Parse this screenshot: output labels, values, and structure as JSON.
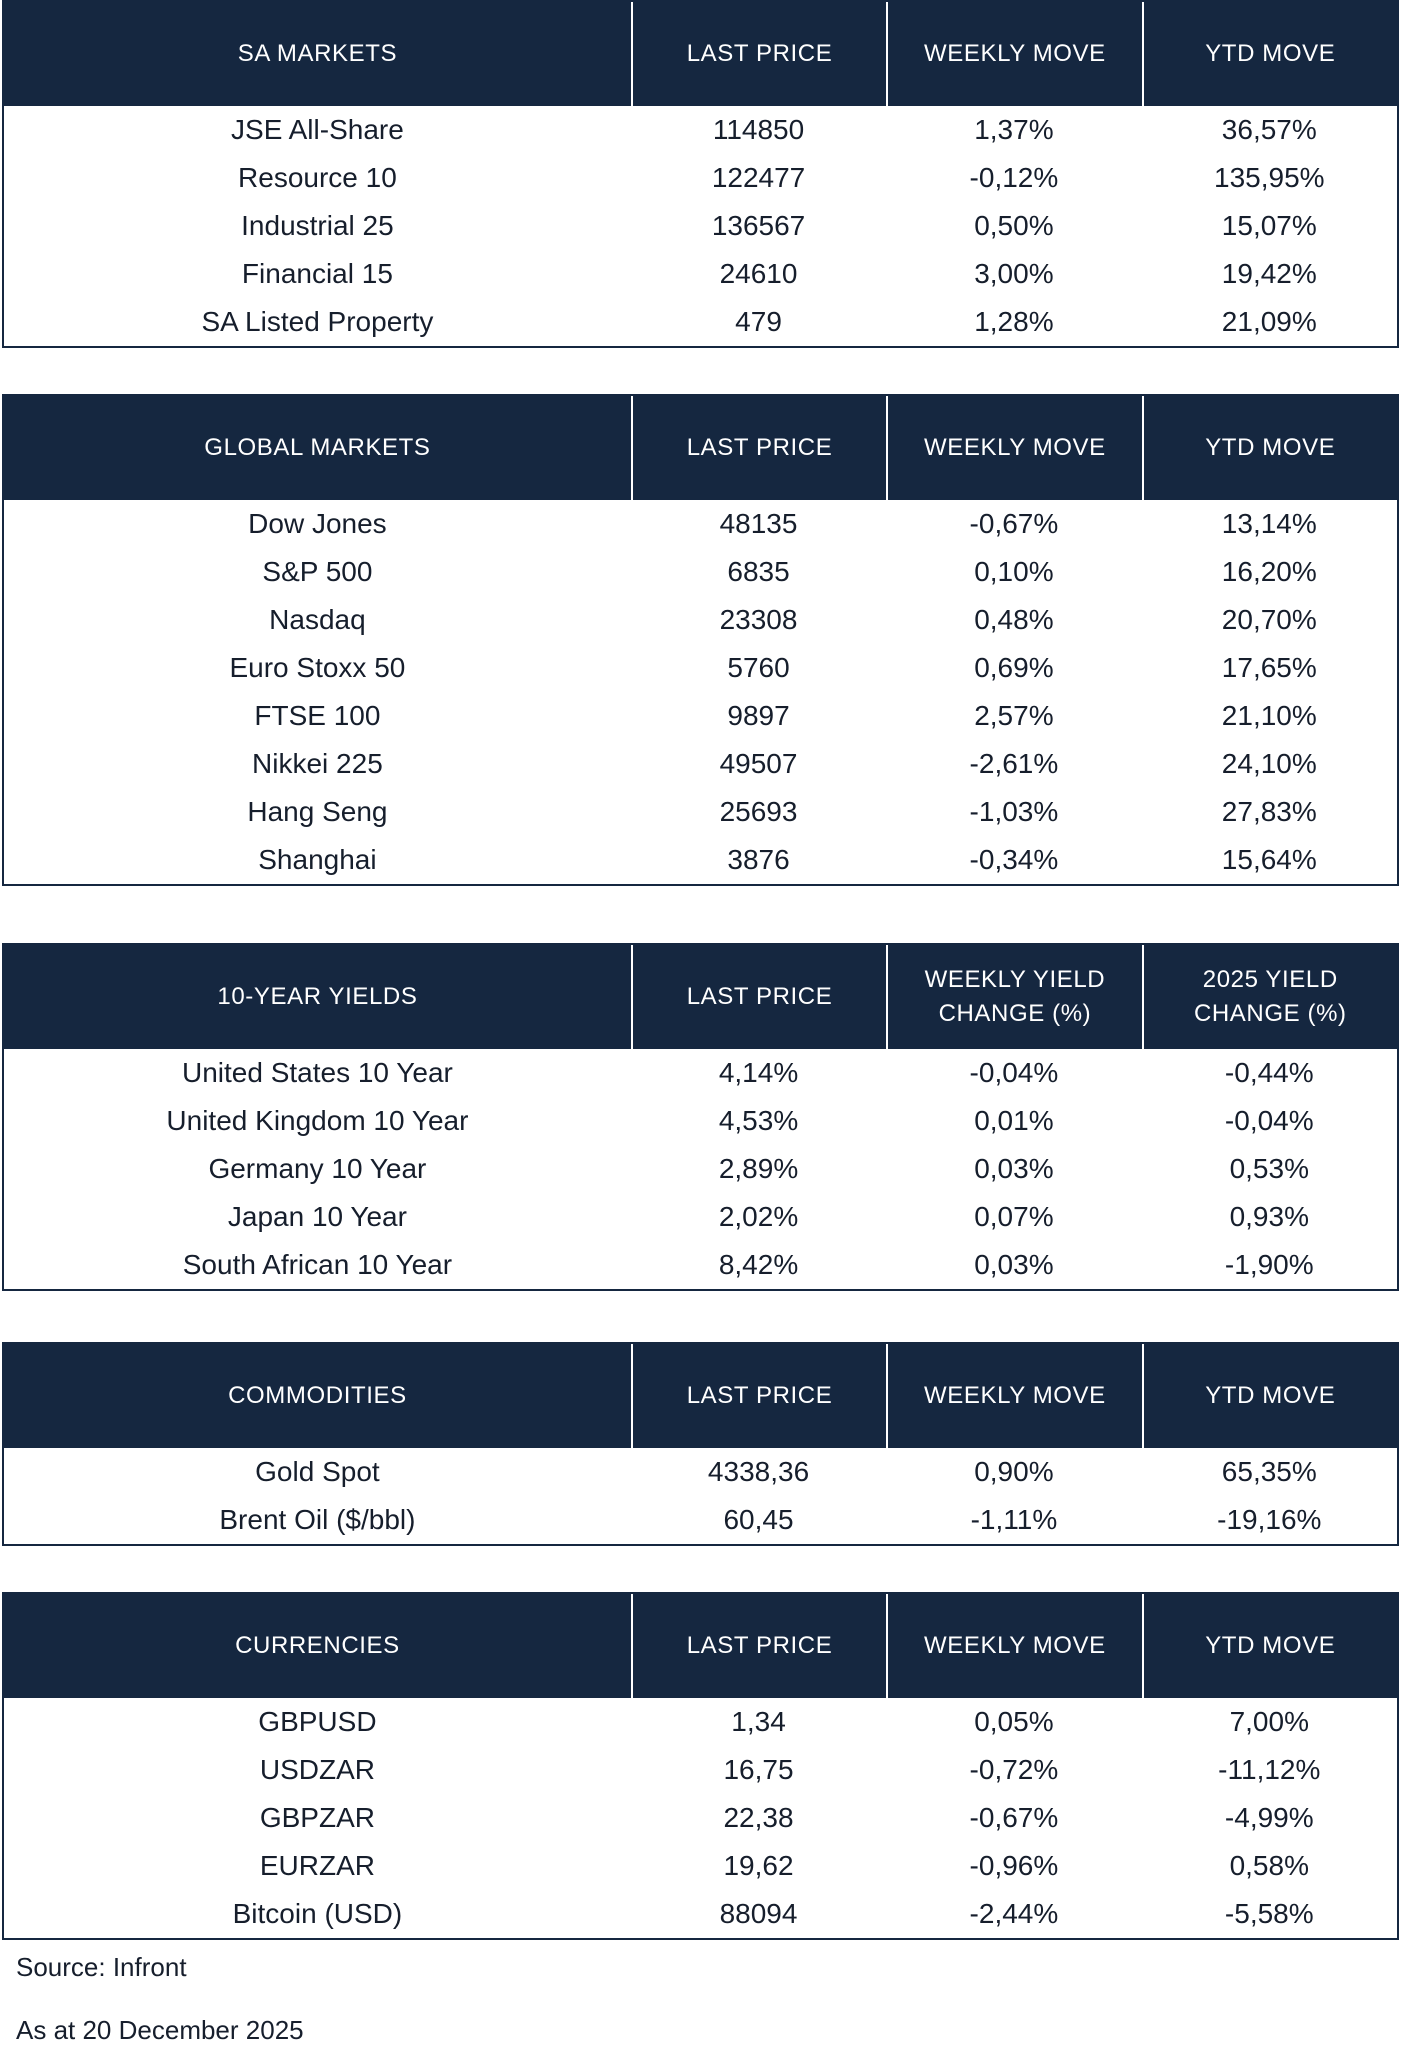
{
  "sections": [
    {
      "title": "SA MARKETS",
      "columns": [
        "LAST PRICE",
        "WEEKLY MOVE",
        "YTD MOVE"
      ],
      "rows": [
        [
          "JSE All-Share",
          "114850",
          "1,37%",
          "36,57%"
        ],
        [
          "Resource 10",
          "122477",
          "-0,12%",
          "135,95%"
        ],
        [
          "Industrial 25",
          "136567",
          "0,50%",
          "15,07%"
        ],
        [
          "Financial 15",
          "24610",
          "3,00%",
          "19,42%"
        ],
        [
          "SA Listed Property",
          "479",
          "1,28%",
          "21,09%"
        ]
      ]
    },
    {
      "title": "GLOBAL MARKETS",
      "columns": [
        "LAST PRICE",
        "WEEKLY MOVE",
        "YTD MOVE"
      ],
      "rows": [
        [
          "Dow Jones",
          "48135",
          "-0,67%",
          "13,14%"
        ],
        [
          "S&P 500",
          "6835",
          "0,10%",
          "16,20%"
        ],
        [
          "Nasdaq",
          "23308",
          "0,48%",
          "20,70%"
        ],
        [
          "Euro Stoxx 50",
          "5760",
          "0,69%",
          "17,65%"
        ],
        [
          "FTSE 100",
          "9897",
          "2,57%",
          "21,10%"
        ],
        [
          "Nikkei 225",
          "49507",
          "-2,61%",
          "24,10%"
        ],
        [
          "Hang Seng",
          "25693",
          "-1,03%",
          "27,83%"
        ],
        [
          "Shanghai",
          "3876",
          "-0,34%",
          "15,64%"
        ]
      ]
    },
    {
      "title": "10-YEAR YIELDS",
      "columns": [
        "LAST PRICE",
        "WEEKLY YIELD CHANGE (%)",
        "2025 YIELD CHANGE (%)"
      ],
      "rows": [
        [
          "United States 10 Year",
          "4,14%",
          "-0,04%",
          "-0,44%"
        ],
        [
          "United Kingdom 10 Year",
          "4,53%",
          "0,01%",
          "-0,04%"
        ],
        [
          "Germany 10 Year",
          "2,89%",
          "0,03%",
          "0,53%"
        ],
        [
          "Japan 10 Year",
          "2,02%",
          "0,07%",
          "0,93%"
        ],
        [
          "South African 10 Year",
          "8,42%",
          "0,03%",
          "-1,90%"
        ]
      ]
    },
    {
      "title": "COMMODITIES",
      "columns": [
        "LAST PRICE",
        "WEEKLY MOVE",
        "YTD MOVE"
      ],
      "rows": [
        [
          "Gold Spot",
          "4338,36",
          "0,90%",
          "65,35%"
        ],
        [
          "Brent Oil ($/bbl)",
          "60,45",
          "-1,11%",
          "-19,16%"
        ]
      ]
    },
    {
      "title": "CURRENCIES",
      "columns": [
        "LAST PRICE",
        "WEEKLY MOVE",
        "YTD MOVE"
      ],
      "rows": [
        [
          "GBPUSD",
          "1,34",
          "0,05%",
          "7,00%"
        ],
        [
          "USDZAR",
          "16,75",
          "-0,72%",
          "-11,12%"
        ],
        [
          "GBPZAR",
          "22,38",
          "-0,67%",
          "-4,99%"
        ],
        [
          "EURZAR",
          "19,62",
          "-0,96%",
          "0,58%"
        ],
        [
          "Bitcoin (USD)",
          "88094",
          "-2,44%",
          "-5,58%"
        ]
      ]
    }
  ],
  "footer": {
    "source": "Source: Infront",
    "as_at": "As at 20 December 2025"
  },
  "colors": {
    "header_bg": "#152740",
    "body_text": "#161e2c",
    "border": "#152740",
    "header_text": "#ffffff"
  }
}
